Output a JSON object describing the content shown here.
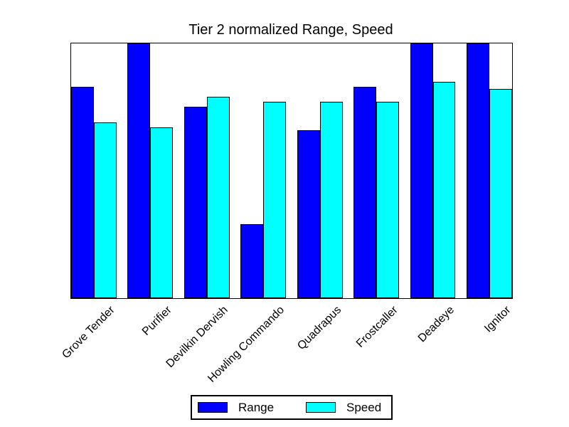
{
  "figure": {
    "background": "#ffffff"
  },
  "chart_data": {
    "type": "bar",
    "title": "Tier 2 normalized Range, Speed",
    "categories": [
      "Grove Tender",
      "Purifier",
      "Devilkin Dervish",
      "Howling Commando",
      "Quadrapus",
      "Frostcaller",
      "Deadeye",
      "Ignitor"
    ],
    "series": [
      {
        "name": "Range",
        "color": "#0000ff",
        "values": [
          0.83,
          1.0,
          0.75,
          0.29,
          0.66,
          0.83,
          1.0,
          1.0
        ]
      },
      {
        "name": "Speed",
        "color": "#00ffff",
        "values": [
          0.69,
          0.67,
          0.79,
          0.77,
          0.77,
          0.77,
          0.85,
          0.82
        ]
      }
    ],
    "ylim": [
      0,
      1
    ],
    "xlabel": "",
    "ylabel": "",
    "y_tick_labels": [],
    "x_tick_rotation_deg": 45,
    "grid": false,
    "bar_edge_color": "#000000",
    "axes_edge_color": "#000000",
    "legend_position": "bottom-center",
    "legend_entries": [
      "Range",
      "Speed"
    ]
  }
}
